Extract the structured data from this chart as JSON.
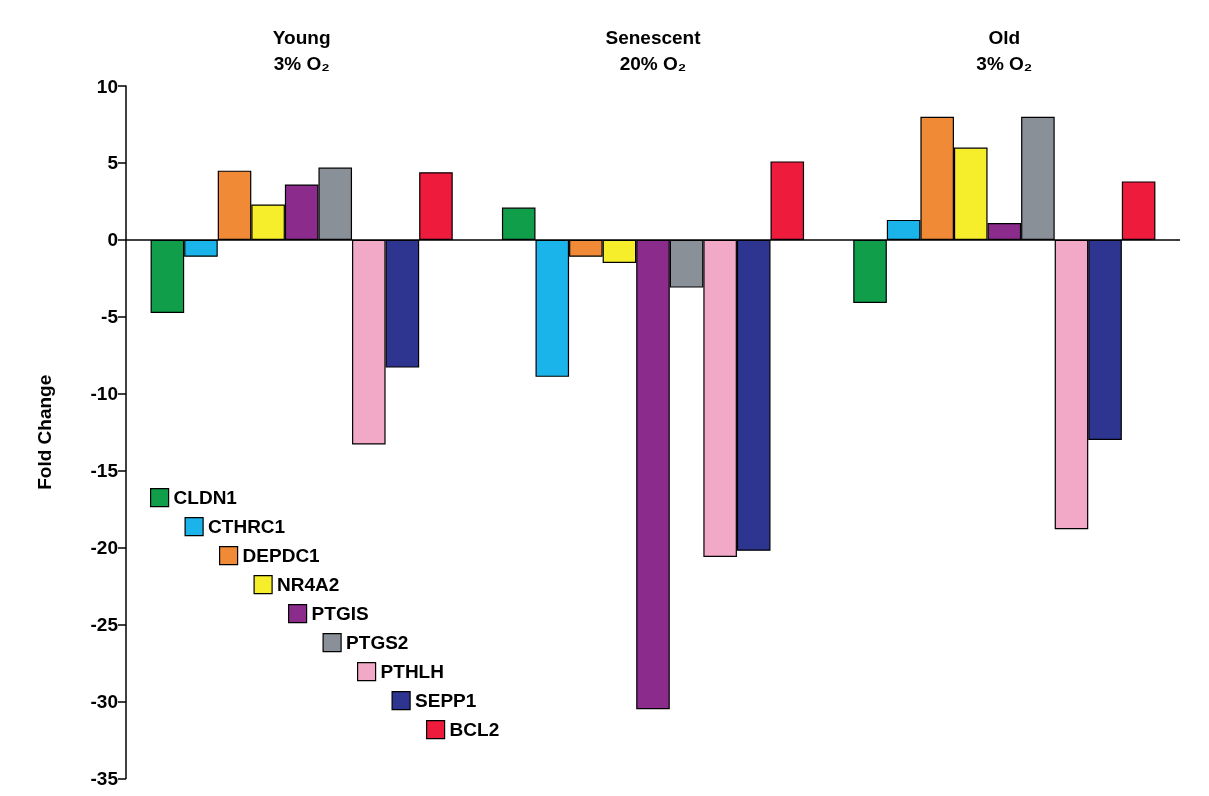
{
  "chart_data": {
    "type": "bar",
    "categories": [
      "Young\n3% O₂",
      "Senescent\n20% O₂",
      "Old\n3% O₂"
    ],
    "ylabel": "Fold Change",
    "ylim": [
      -35,
      10
    ],
    "yticks": [
      -35,
      -30,
      -25,
      -20,
      -15,
      -10,
      -5,
      0,
      5,
      10
    ],
    "ref_lines": [
      {
        "axis": "y",
        "value": 0
      }
    ],
    "legend": "bottom left",
    "series": [
      {
        "name": "CLDN1",
        "color": "#109e4a",
        "values": [
          -4.75,
          2.1,
          -4.1
        ]
      },
      {
        "name": "CTHRC1",
        "color": "#1bb4ea",
        "values": [
          -1.1,
          -8.9,
          1.3
        ]
      },
      {
        "name": "DEPDC1",
        "color": "#f08a36",
        "values": [
          4.5,
          -1.1,
          8.0
        ]
      },
      {
        "name": "NR4A2",
        "color": "#f7ee2b",
        "values": [
          2.3,
          -1.5,
          6.0
        ]
      },
      {
        "name": "PTGIS",
        "color": "#8b2c8c",
        "values": [
          3.6,
          -30.5,
          1.1
        ]
      },
      {
        "name": "PTGS2",
        "color": "#8a9098",
        "values": [
          4.7,
          -3.1,
          8.0
        ]
      },
      {
        "name": "PTHLH",
        "color": "#f2a9c8",
        "values": [
          -13.3,
          -20.6,
          -18.8
        ]
      },
      {
        "name": "SEPP1",
        "color": "#2e3591",
        "values": [
          -8.3,
          -20.2,
          -13.0
        ]
      },
      {
        "name": "BCL2",
        "color": "#ee1b3c",
        "values": [
          4.4,
          5.1,
          3.8
        ]
      }
    ]
  }
}
